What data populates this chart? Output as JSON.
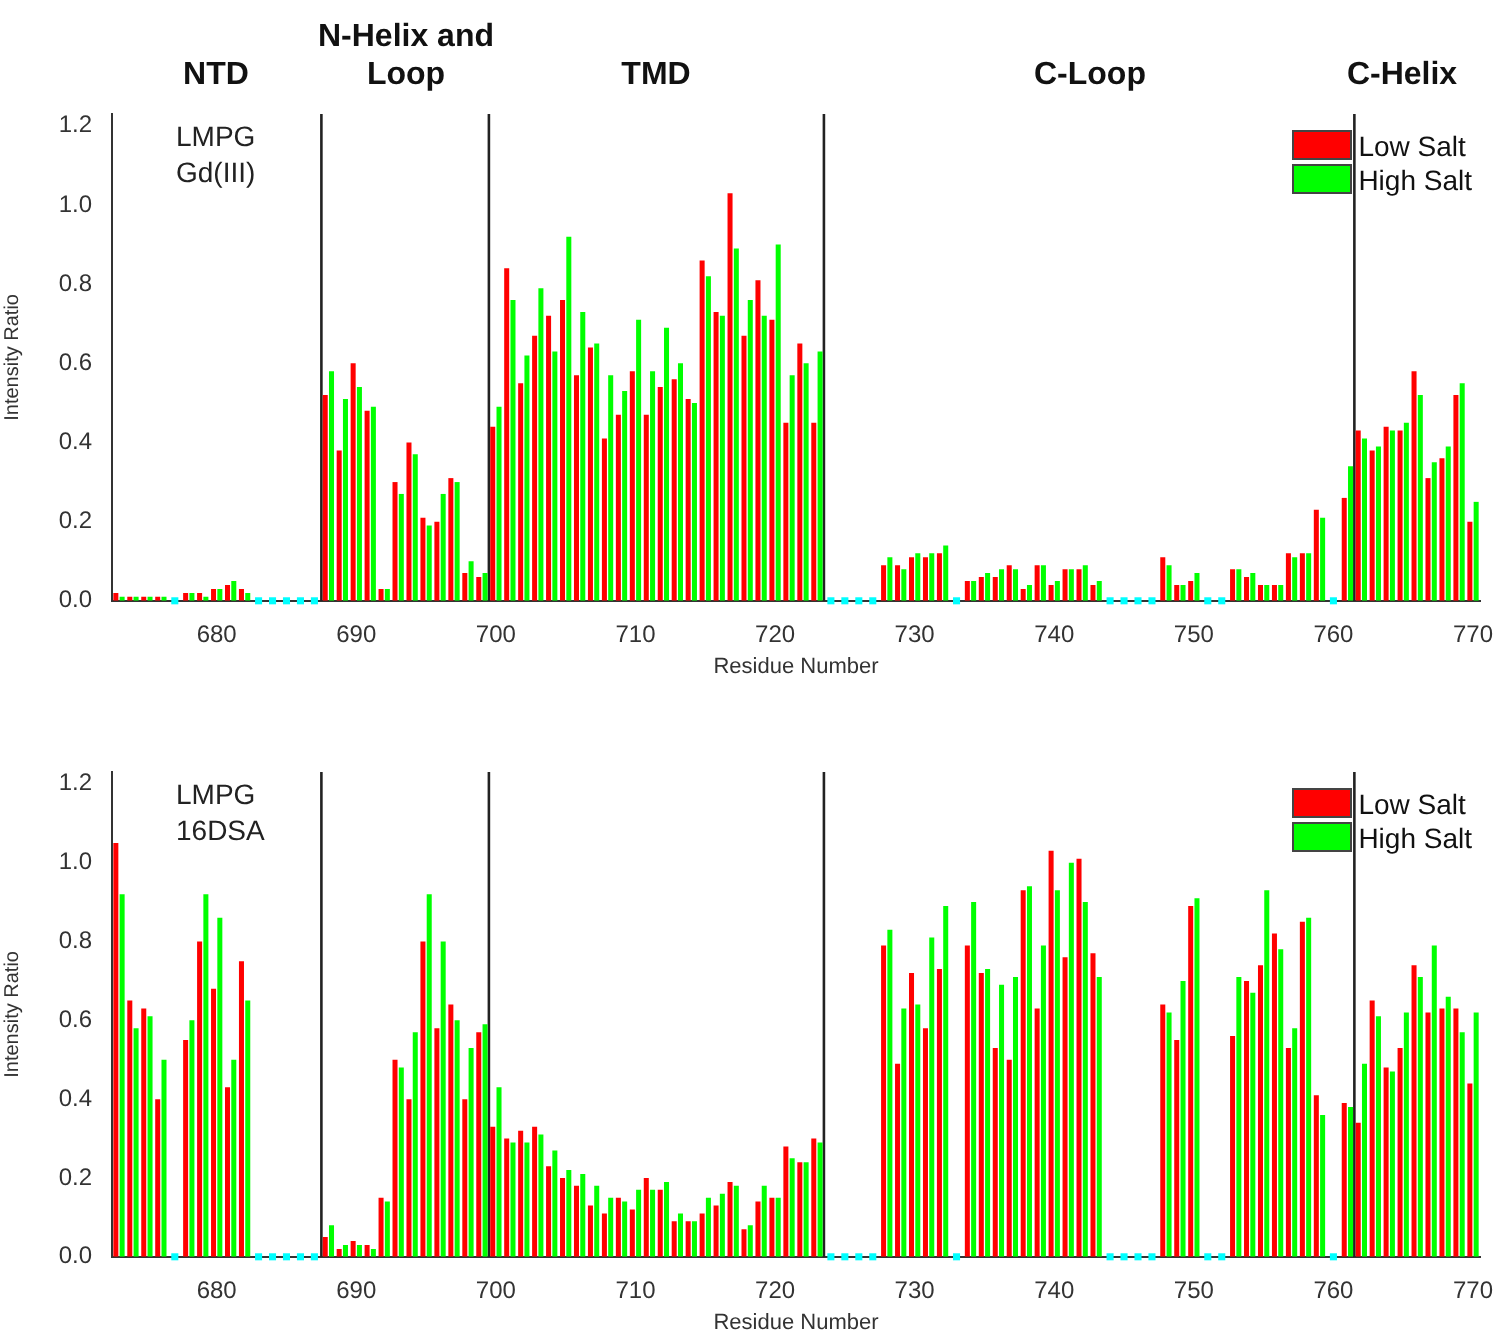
{
  "chart_data": [
    {
      "type": "bar",
      "xlabel": "Residue Number",
      "ylabel": "Intensity Ratio",
      "legend": "top right",
      "grid": false,
      "title": "LMPG Gd(III)",
      "annotations": [
        "NTD",
        "N-Helix and Loop",
        "TMD",
        "C-Loop",
        "C-Helix"
      ],
      "x": [
        673,
        674,
        675,
        676,
        677,
        678,
        679,
        680,
        681,
        682,
        683,
        684,
        685,
        686,
        687,
        688,
        689,
        690,
        691,
        692,
        693,
        694,
        695,
        696,
        697,
        698,
        699,
        700,
        701,
        702,
        703,
        704,
        705,
        706,
        707,
        708,
        709,
        710,
        711,
        712,
        713,
        714,
        715,
        716,
        717,
        718,
        719,
        720,
        721,
        722,
        723,
        724,
        725,
        726,
        727,
        728,
        729,
        730,
        731,
        732,
        733,
        734,
        735,
        736,
        737,
        738,
        739,
        740,
        741,
        742,
        743,
        744,
        745,
        746,
        747,
        748,
        749,
        750,
        751,
        752,
        753,
        754,
        755,
        756,
        757,
        758,
        759,
        760,
        761,
        762,
        763,
        764,
        765,
        766,
        767,
        768,
        769,
        770
      ],
      "series": [
        {
          "name": "Low Salt",
          "color": "#ff0000",
          "values": [
            0.02,
            0.01,
            0.01,
            0.01,
            null,
            0.02,
            0.02,
            0.03,
            0.04,
            0.03,
            null,
            null,
            null,
            null,
            null,
            0.52,
            0.38,
            0.6,
            0.48,
            0.03,
            0.3,
            0.4,
            0.21,
            0.2,
            0.31,
            0.07,
            0.06,
            0.44,
            0.84,
            0.55,
            0.67,
            0.72,
            0.76,
            0.57,
            0.64,
            0.41,
            0.47,
            0.58,
            0.47,
            0.54,
            0.56,
            0.51,
            0.86,
            0.73,
            1.03,
            0.67,
            0.81,
            0.71,
            0.45,
            0.65,
            0.45,
            null,
            null,
            null,
            null,
            0.09,
            0.09,
            0.11,
            0.11,
            0.12,
            null,
            0.05,
            0.06,
            0.06,
            0.09,
            0.03,
            0.09,
            0.04,
            0.08,
            0.08,
            0.04,
            null,
            null,
            null,
            null,
            0.11,
            0.04,
            0.05,
            null,
            null,
            0.08,
            0.06,
            0.04,
            0.04,
            0.12,
            0.12,
            0.23,
            null,
            0.26,
            0.43,
            0.38,
            0.44,
            0.43,
            0.58,
            0.31,
            0.36,
            0.52,
            0.2
          ]
        },
        {
          "name": "High Salt",
          "color": "#00ff00",
          "values": [
            0.01,
            0.01,
            0.01,
            0.01,
            null,
            0.02,
            0.01,
            0.03,
            0.05,
            0.02,
            null,
            null,
            null,
            null,
            null,
            0.58,
            0.51,
            0.54,
            0.49,
            0.03,
            0.27,
            0.37,
            0.19,
            0.27,
            0.3,
            0.1,
            0.07,
            0.49,
            0.76,
            0.62,
            0.79,
            0.63,
            0.92,
            0.73,
            0.65,
            0.57,
            0.53,
            0.71,
            0.58,
            0.69,
            0.6,
            0.5,
            0.82,
            0.72,
            0.89,
            0.76,
            0.72,
            0.9,
            0.57,
            0.6,
            0.63,
            null,
            null,
            null,
            null,
            0.11,
            0.08,
            0.12,
            0.12,
            0.14,
            null,
            0.05,
            0.07,
            0.08,
            0.08,
            0.04,
            0.09,
            0.05,
            0.08,
            0.09,
            0.05,
            null,
            null,
            null,
            null,
            0.09,
            0.04,
            0.07,
            null,
            null,
            0.08,
            0.07,
            0.04,
            0.04,
            0.11,
            0.12,
            0.21,
            null,
            0.34,
            0.41,
            0.39,
            0.43,
            0.45,
            0.52,
            0.35,
            0.39,
            0.55,
            0.25
          ]
        },
        {
          "type": "scatter",
          "color": "#00ffff",
          "marker": "square",
          "x": [
            677,
            683,
            684,
            685,
            686,
            687,
            724,
            725,
            726,
            727,
            733,
            744,
            745,
            746,
            747,
            751,
            752,
            760
          ],
          "values": [
            0,
            0,
            0,
            0,
            0,
            0,
            0,
            0,
            0,
            0,
            0,
            0,
            0,
            0,
            0,
            0,
            0,
            0
          ]
        }
      ],
      "xlim": [
        672.5,
        770.5
      ],
      "xticks": [
        680,
        690,
        700,
        710,
        720,
        730,
        740,
        750,
        760,
        770
      ],
      "ylim": [
        0,
        1.23
      ],
      "yticks": [
        {
          "value": 0,
          "label": "0.0"
        },
        {
          "value": 0.2,
          "label": "0.2"
        },
        {
          "value": 0.4,
          "label": "0.4"
        },
        {
          "value": 0.6,
          "label": "0.6"
        },
        {
          "value": 0.8,
          "label": "0.8"
        },
        {
          "value": 1,
          "label": "1.0"
        },
        {
          "value": 1.2,
          "label": "1.2"
        }
      ],
      "ref_lines": [
        {
          "axis": "x",
          "value": 687.5
        },
        {
          "axis": "x",
          "value": 699.5
        },
        {
          "axis": "x",
          "value": 723.5
        },
        {
          "axis": "x",
          "value": 761.5
        }
      ]
    },
    {
      "type": "bar",
      "xlabel": "Residue Number",
      "ylabel": "Intensity Ratio",
      "legend": "top right",
      "grid": false,
      "title": "LMPG 16DSA",
      "x": [
        673,
        674,
        675,
        676,
        677,
        678,
        679,
        680,
        681,
        682,
        683,
        684,
        685,
        686,
        687,
        688,
        689,
        690,
        691,
        692,
        693,
        694,
        695,
        696,
        697,
        698,
        699,
        700,
        701,
        702,
        703,
        704,
        705,
        706,
        707,
        708,
        709,
        710,
        711,
        712,
        713,
        714,
        715,
        716,
        717,
        718,
        719,
        720,
        721,
        722,
        723,
        724,
        725,
        726,
        727,
        728,
        729,
        730,
        731,
        732,
        733,
        734,
        735,
        736,
        737,
        738,
        739,
        740,
        741,
        742,
        743,
        744,
        745,
        746,
        747,
        748,
        749,
        750,
        751,
        752,
        753,
        754,
        755,
        756,
        757,
        758,
        759,
        760,
        761,
        762,
        763,
        764,
        765,
        766,
        767,
        768,
        769,
        770
      ],
      "series": [
        {
          "name": "Low Salt",
          "color": "#ff0000",
          "values": [
            1.05,
            0.65,
            0.63,
            0.4,
            null,
            0.55,
            0.8,
            0.68,
            0.43,
            0.75,
            null,
            null,
            null,
            null,
            null,
            0.05,
            0.02,
            0.04,
            0.03,
            0.15,
            0.5,
            0.4,
            0.8,
            0.58,
            0.64,
            0.4,
            0.57,
            0.33,
            0.3,
            0.32,
            0.33,
            0.23,
            0.2,
            0.18,
            0.13,
            0.11,
            0.15,
            0.12,
            0.2,
            0.17,
            0.09,
            0.09,
            0.11,
            0.13,
            0.19,
            0.07,
            0.14,
            0.15,
            0.28,
            0.24,
            0.3,
            null,
            null,
            null,
            null,
            0.79,
            0.49,
            0.72,
            0.58,
            0.73,
            null,
            0.79,
            0.72,
            0.53,
            0.5,
            0.93,
            0.63,
            1.03,
            0.76,
            1.01,
            0.77,
            null,
            null,
            null,
            null,
            0.64,
            0.55,
            0.89,
            null,
            null,
            0.56,
            0.7,
            0.74,
            0.82,
            0.53,
            0.85,
            0.41,
            null,
            0.39,
            0.34,
            0.65,
            0.48,
            0.53,
            0.74,
            0.62,
            0.63,
            0.63,
            0.44
          ]
        },
        {
          "name": "High Salt",
          "color": "#00ff00",
          "values": [
            0.92,
            0.58,
            0.61,
            0.5,
            null,
            0.6,
            0.92,
            0.86,
            0.5,
            0.65,
            null,
            null,
            null,
            null,
            null,
            0.08,
            0.03,
            0.03,
            0.02,
            0.14,
            0.48,
            0.57,
            0.92,
            0.8,
            0.6,
            0.53,
            0.59,
            0.43,
            0.29,
            0.29,
            0.31,
            0.27,
            0.22,
            0.21,
            0.18,
            0.15,
            0.14,
            0.17,
            0.17,
            0.19,
            0.11,
            0.09,
            0.15,
            0.16,
            0.18,
            0.08,
            0.18,
            0.15,
            0.25,
            0.24,
            0.29,
            null,
            null,
            null,
            null,
            0.83,
            0.63,
            0.64,
            0.81,
            0.89,
            null,
            0.9,
            0.73,
            0.69,
            0.71,
            0.94,
            0.79,
            0.93,
            1.0,
            0.9,
            0.71,
            null,
            null,
            null,
            null,
            0.62,
            0.7,
            0.91,
            null,
            null,
            0.71,
            0.67,
            0.93,
            0.78,
            0.58,
            0.86,
            0.36,
            null,
            0.38,
            0.49,
            0.61,
            0.47,
            0.62,
            0.71,
            0.79,
            0.66,
            0.57,
            0.62
          ]
        },
        {
          "type": "scatter",
          "color": "#00ffff",
          "marker": "square",
          "x": [
            677,
            683,
            684,
            685,
            686,
            687,
            724,
            725,
            726,
            727,
            733,
            744,
            745,
            746,
            747,
            751,
            752,
            760
          ],
          "values": [
            0,
            0,
            0,
            0,
            0,
            0,
            0,
            0,
            0,
            0,
            0,
            0,
            0,
            0,
            0,
            0,
            0,
            0
          ]
        }
      ],
      "xlim": [
        672.5,
        770.5
      ],
      "xticks": [
        680,
        690,
        700,
        710,
        720,
        730,
        740,
        750,
        760,
        770
      ],
      "ylim": [
        0,
        1.23
      ],
      "yticks": [
        {
          "value": 0,
          "label": "0.0"
        },
        {
          "value": 0.2,
          "label": "0.2"
        },
        {
          "value": 0.4,
          "label": "0.4"
        },
        {
          "value": 0.6,
          "label": "0.6"
        },
        {
          "value": 0.8,
          "label": "0.8"
        },
        {
          "value": 1,
          "label": "1.0"
        },
        {
          "value": 1.2,
          "label": "1.2"
        }
      ],
      "ref_lines": [
        {
          "axis": "x",
          "value": 687.5
        },
        {
          "axis": "x",
          "value": 699.5
        },
        {
          "axis": "x",
          "value": 723.5
        },
        {
          "axis": "x",
          "value": 761.5
        }
      ]
    }
  ]
}
